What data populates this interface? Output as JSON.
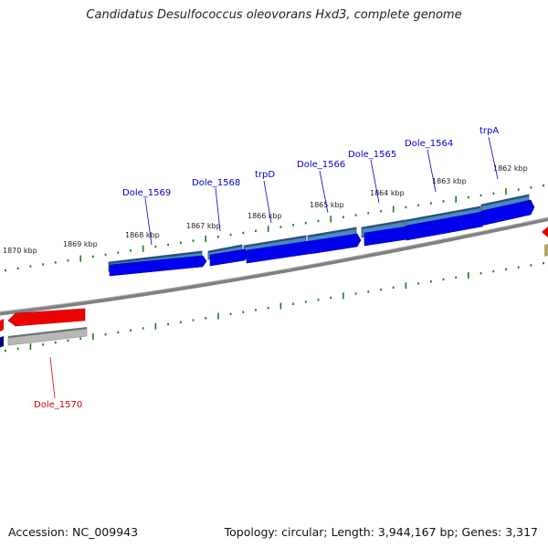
{
  "title": "Candidatus Desulfococcus oleovorans Hxd3, complete genome",
  "footer": {
    "accession": "Accession: NC_009943",
    "summary": "Topology: circular; Length: 3,944,167 bp; Genes: 3,317"
  },
  "colors": {
    "backbone": "#808080",
    "forward_cds": "#0000ee",
    "forward_gene": "#4a8ac2",
    "reverse_cds": "#ee0000",
    "reverse_gene": "#b8b8b8",
    "tick": "#1a7a1a",
    "forward_label": "#0000cc",
    "reverse_label": "#cc0000"
  },
  "tick_labels": [
    "1870 kbp",
    "1869 kbp",
    "1868 kbp",
    "1867 kbp",
    "1866 kbp",
    "1865 kbp",
    "1864 kbp",
    "1863 kbp",
    "1862 kbp"
  ],
  "forward_gene_labels": [
    "Dole_1569",
    "Dole_1568",
    "trpD",
    "Dole_1566",
    "Dole_1565",
    "Dole_1564",
    "trpA"
  ],
  "reverse_gene_labels": [
    "Dole_1570"
  ]
}
